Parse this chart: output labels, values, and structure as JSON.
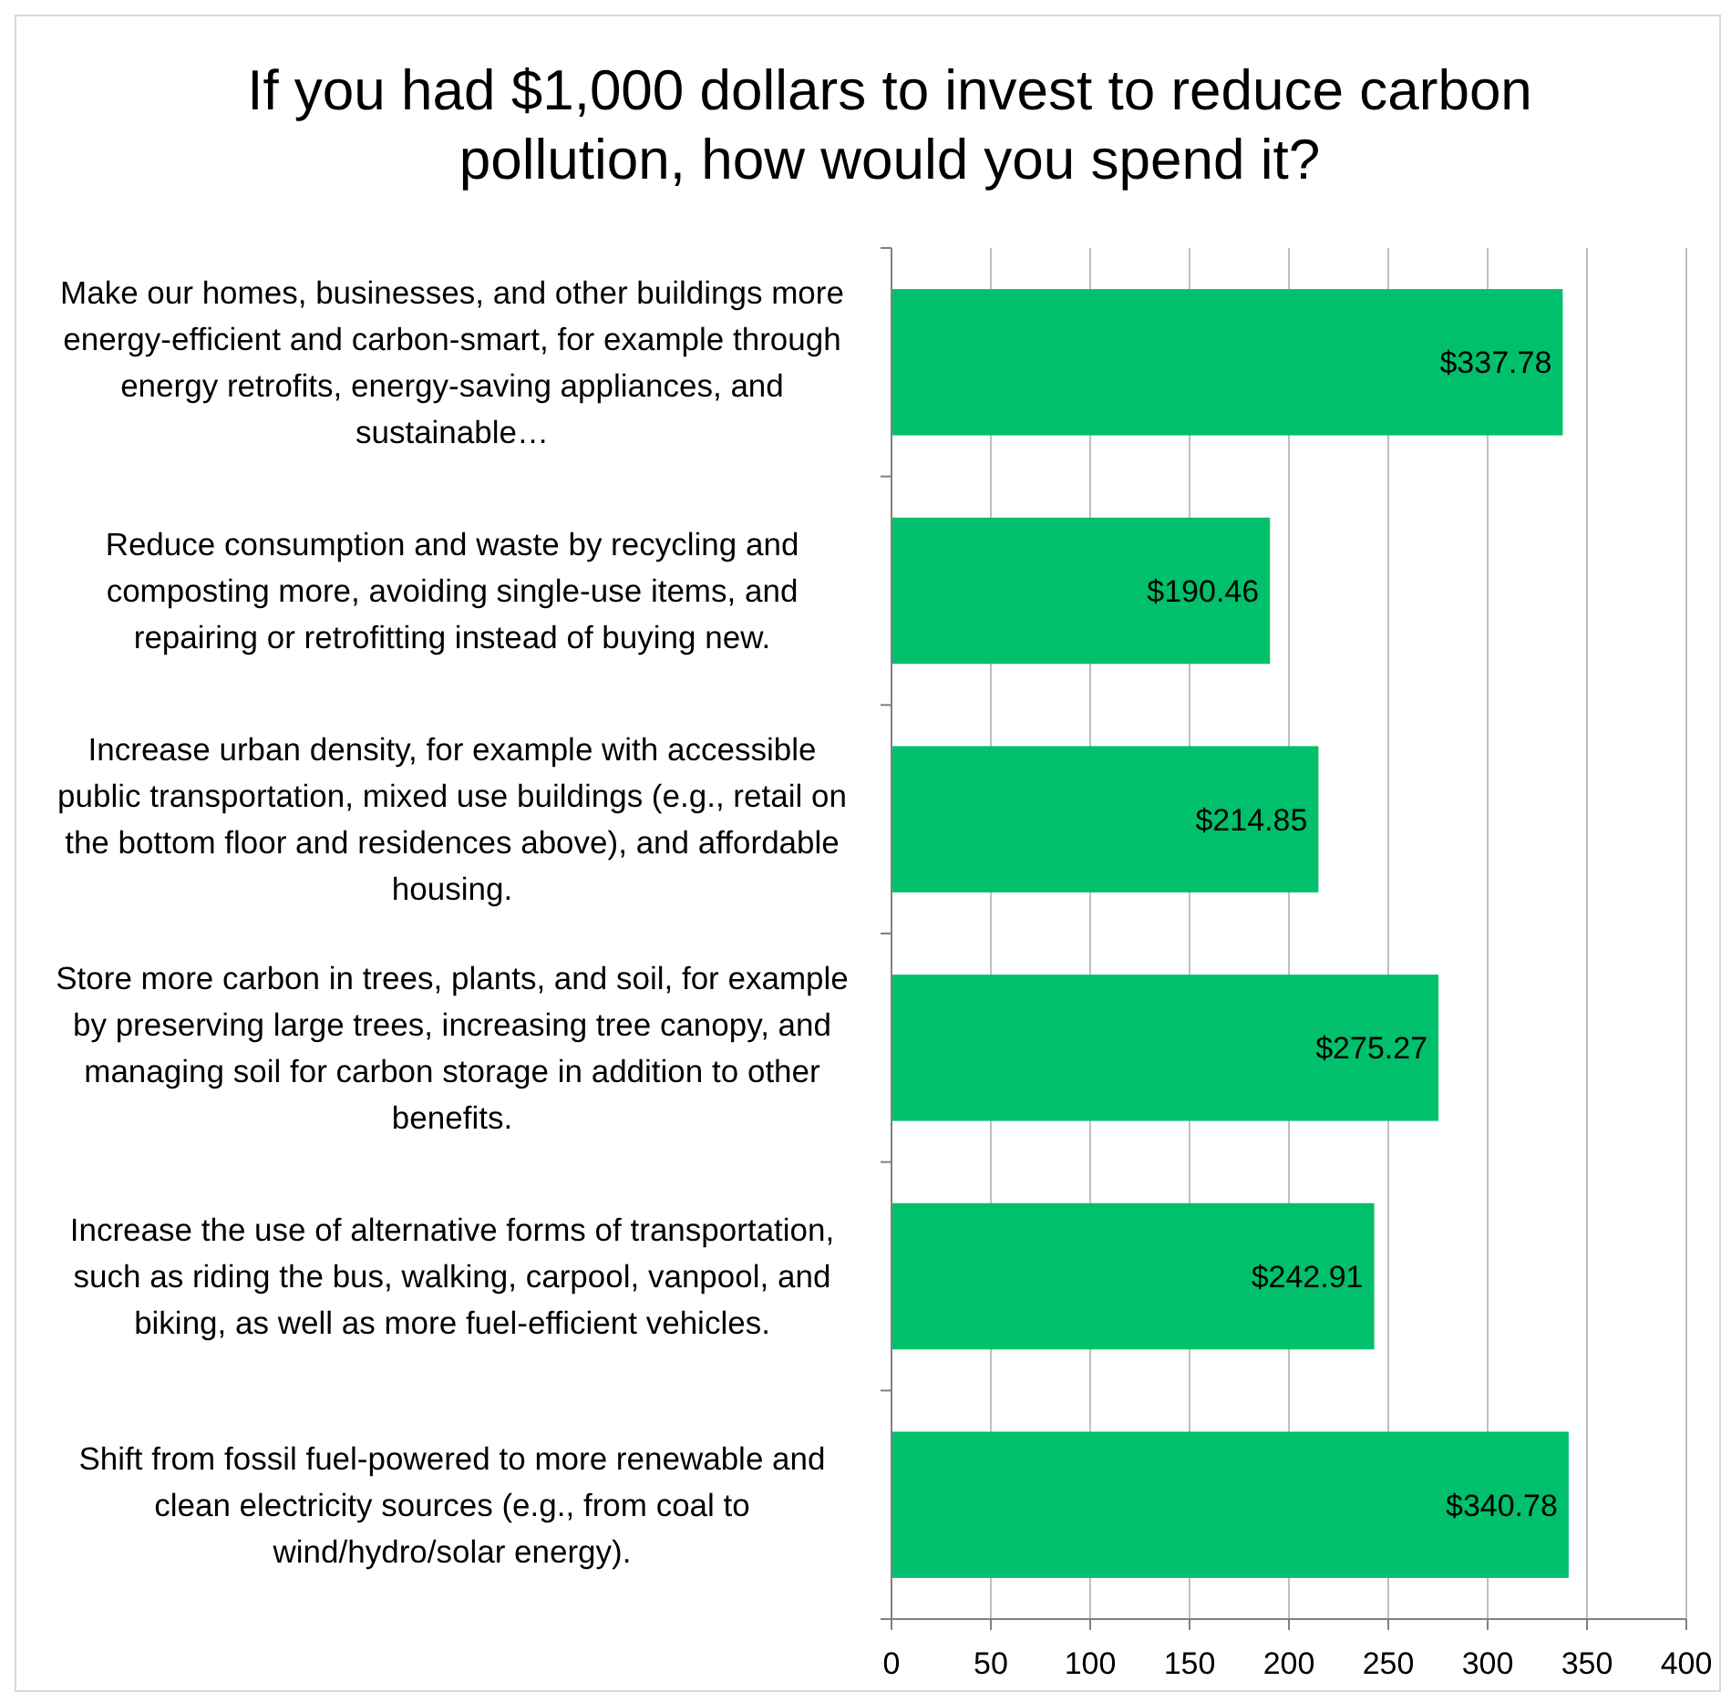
{
  "chart_data": {
    "type": "bar",
    "orientation": "horizontal",
    "title": "If you had $1,000 dollars to invest to reduce carbon pollution, how would you spend it?",
    "categories": [
      "Make our homes, businesses, and other buildings more energy-efficient and carbon-smart, for example through energy retrofits, energy-saving appliances, and sustainable…",
      "Reduce consumption and waste by recycling and composting more, avoiding single-use items, and repairing or retrofitting instead of buying new.",
      "Increase urban density, for example with accessible public transportation, mixed use buildings (e.g., retail on the bottom floor and residences above), and affordable housing.",
      "Store more carbon in trees, plants, and soil, for example by preserving large trees, increasing tree canopy, and managing soil for carbon storage in addition to other benefits.",
      "Increase the use of alternative forms of transportation, such as riding the bus, walking, carpool, vanpool, and biking, as well as more fuel-efficient vehicles.",
      "Shift from fossil fuel-powered to more renewable and clean electricity sources (e.g., from coal to wind/hydro/solar energy)."
    ],
    "values": [
      337.78,
      190.46,
      214.85,
      275.27,
      242.91,
      340.78
    ],
    "value_labels": [
      "$337.78",
      "$190.46",
      "$214.85",
      "$275.27",
      "$242.91",
      "$340.78"
    ],
    "color": "#00c06b",
    "xlim": [
      0,
      400
    ],
    "xticks": [
      0,
      50,
      100,
      150,
      200,
      250,
      300,
      350,
      400
    ],
    "grid": "x"
  }
}
